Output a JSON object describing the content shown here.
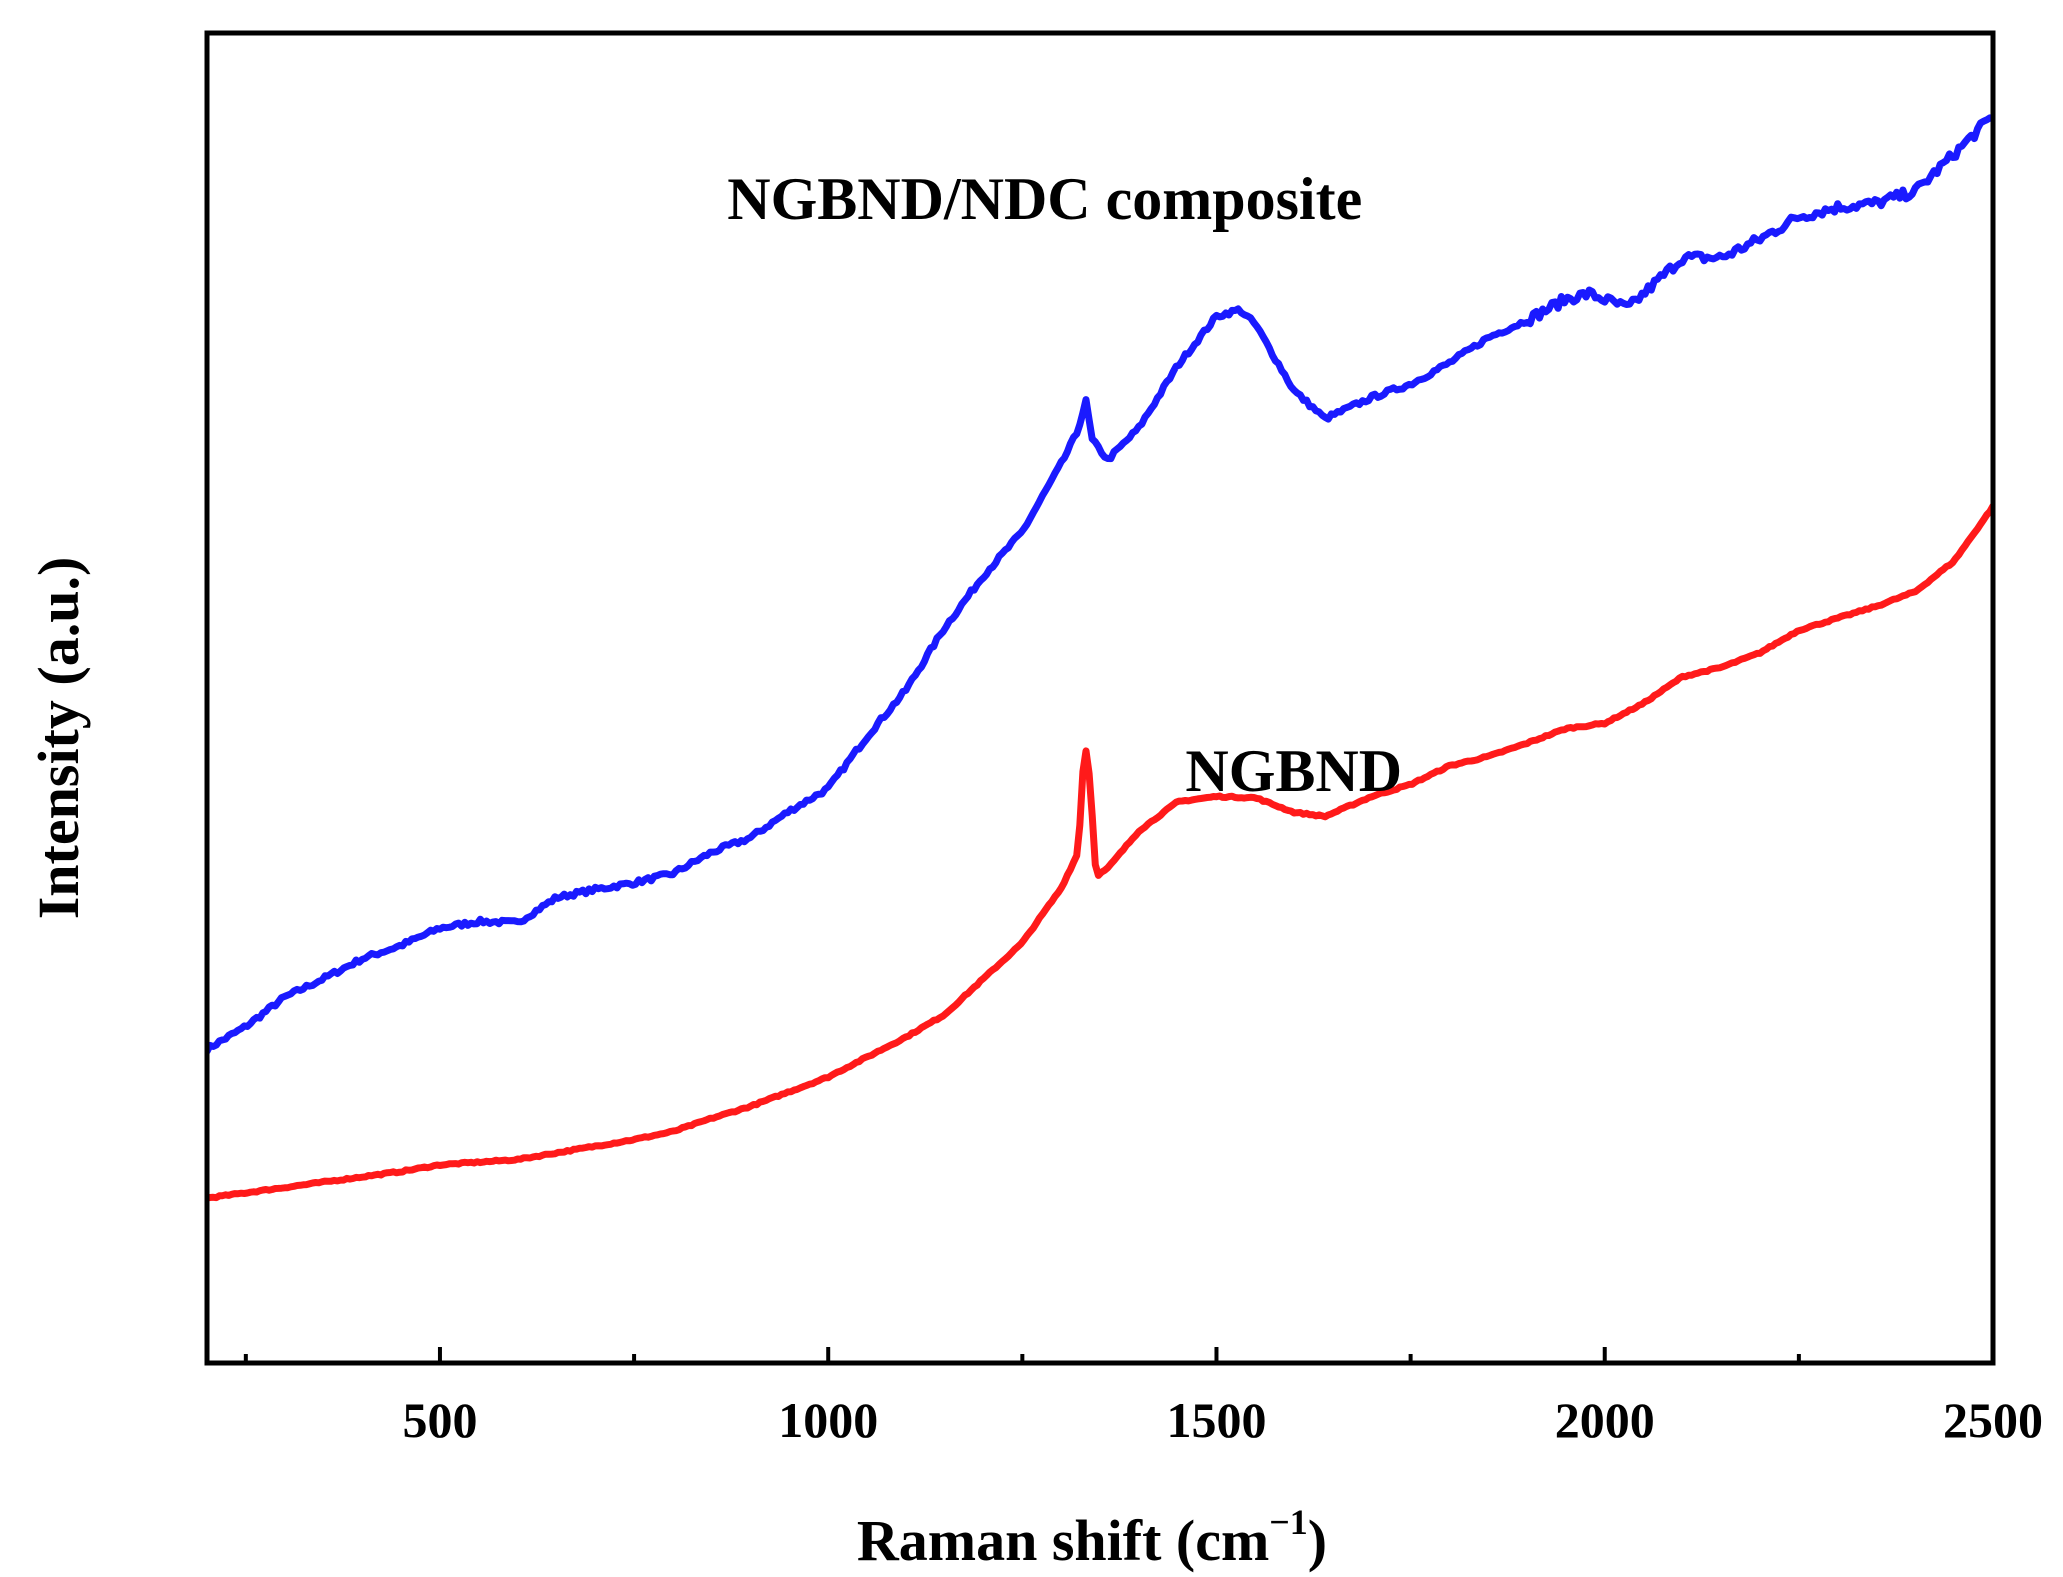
{
  "chart_data": {
    "type": "line",
    "xlabel": "Raman shift (cm",
    "xlabel_sup": "−1",
    "xlabel_close": ")",
    "ylabel": "Intensity (a.u.)",
    "xlim": [
      200,
      2500
    ],
    "ylim": [
      0,
      100
    ],
    "x_major_ticks": [
      500,
      1000,
      1500,
      2000,
      2500
    ],
    "x_tick_labels": [
      "500",
      "1000",
      "1500",
      "2000",
      "2500"
    ],
    "x_minor_ticks": [
      250,
      750,
      1250,
      1750,
      2250
    ],
    "y_ticks_shown": false,
    "grid": false,
    "series": [
      {
        "name": "NGBND/NDC composite",
        "color": "#1a1aff",
        "label_anchor": [
          870,
          86
        ],
        "points": [
          [
            200,
            23.6
          ],
          [
            250,
            25.3
          ],
          [
            300,
            27.5
          ],
          [
            350,
            28.9
          ],
          [
            400,
            30.4
          ],
          [
            450,
            31.4
          ],
          [
            500,
            32.7
          ],
          [
            550,
            33.2
          ],
          [
            600,
            33.1
          ],
          [
            650,
            35.0
          ],
          [
            700,
            35.6
          ],
          [
            750,
            36.1
          ],
          [
            800,
            36.8
          ],
          [
            850,
            38.4
          ],
          [
            900,
            39.5
          ],
          [
            950,
            41.5
          ],
          [
            1000,
            43.2
          ],
          [
            1050,
            47.1
          ],
          [
            1100,
            50.6
          ],
          [
            1150,
            55.3
          ],
          [
            1200,
            59.2
          ],
          [
            1250,
            62.5
          ],
          [
            1300,
            67.6
          ],
          [
            1320,
            69.9
          ],
          [
            1332,
            72.3
          ],
          [
            1340,
            69.4
          ],
          [
            1360,
            67.9
          ],
          [
            1400,
            70.3
          ],
          [
            1450,
            75.0
          ],
          [
            1500,
            78.7
          ],
          [
            1530,
            79.2
          ],
          [
            1550,
            78.1
          ],
          [
            1600,
            73.1
          ],
          [
            1640,
            71.0
          ],
          [
            1700,
            72.6
          ],
          [
            1750,
            73.6
          ],
          [
            1800,
            75.2
          ],
          [
            1850,
            77.1
          ],
          [
            1900,
            78.4
          ],
          [
            1950,
            80.0
          ],
          [
            1980,
            80.4
          ],
          [
            2030,
            79.3
          ],
          [
            2100,
            83.1
          ],
          [
            2150,
            83.1
          ],
          [
            2200,
            84.5
          ],
          [
            2250,
            86.2
          ],
          [
            2300,
            86.9
          ],
          [
            2350,
            87.2
          ],
          [
            2400,
            88.1
          ],
          [
            2450,
            90.9
          ],
          [
            2500,
            93.8
          ]
        ]
      },
      {
        "name": "NGBND",
        "color": "#ff1a1a",
        "label_anchor": [
          1460,
          43
        ],
        "points": [
          [
            200,
            12.4
          ],
          [
            250,
            12.8
          ],
          [
            300,
            13.2
          ],
          [
            350,
            13.6
          ],
          [
            400,
            14.0
          ],
          [
            450,
            14.4
          ],
          [
            500,
            14.9
          ],
          [
            550,
            15.1
          ],
          [
            600,
            15.3
          ],
          [
            650,
            15.8
          ],
          [
            700,
            16.3
          ],
          [
            750,
            16.8
          ],
          [
            800,
            17.4
          ],
          [
            850,
            18.4
          ],
          [
            900,
            19.3
          ],
          [
            950,
            20.4
          ],
          [
            1000,
            21.5
          ],
          [
            1050,
            23.0
          ],
          [
            1100,
            24.5
          ],
          [
            1150,
            26.2
          ],
          [
            1200,
            28.9
          ],
          [
            1250,
            31.6
          ],
          [
            1300,
            35.7
          ],
          [
            1322,
            38.4
          ],
          [
            1328,
            44.5
          ],
          [
            1333,
            46.4
          ],
          [
            1338,
            43.0
          ],
          [
            1345,
            36.6
          ],
          [
            1360,
            37.2
          ],
          [
            1400,
            40.0
          ],
          [
            1450,
            42.2
          ],
          [
            1500,
            42.6
          ],
          [
            1550,
            42.5
          ],
          [
            1600,
            41.4
          ],
          [
            1640,
            41.1
          ],
          [
            1700,
            42.6
          ],
          [
            1750,
            43.5
          ],
          [
            1800,
            44.9
          ],
          [
            1850,
            45.6
          ],
          [
            1900,
            46.6
          ],
          [
            1950,
            47.7
          ],
          [
            2000,
            48.1
          ],
          [
            2050,
            49.6
          ],
          [
            2100,
            51.6
          ],
          [
            2150,
            52.3
          ],
          [
            2200,
            53.4
          ],
          [
            2250,
            55.1
          ],
          [
            2300,
            56.0
          ],
          [
            2350,
            56.9
          ],
          [
            2400,
            58.0
          ],
          [
            2450,
            60.3
          ],
          [
            2500,
            64.4
          ]
        ]
      }
    ]
  }
}
